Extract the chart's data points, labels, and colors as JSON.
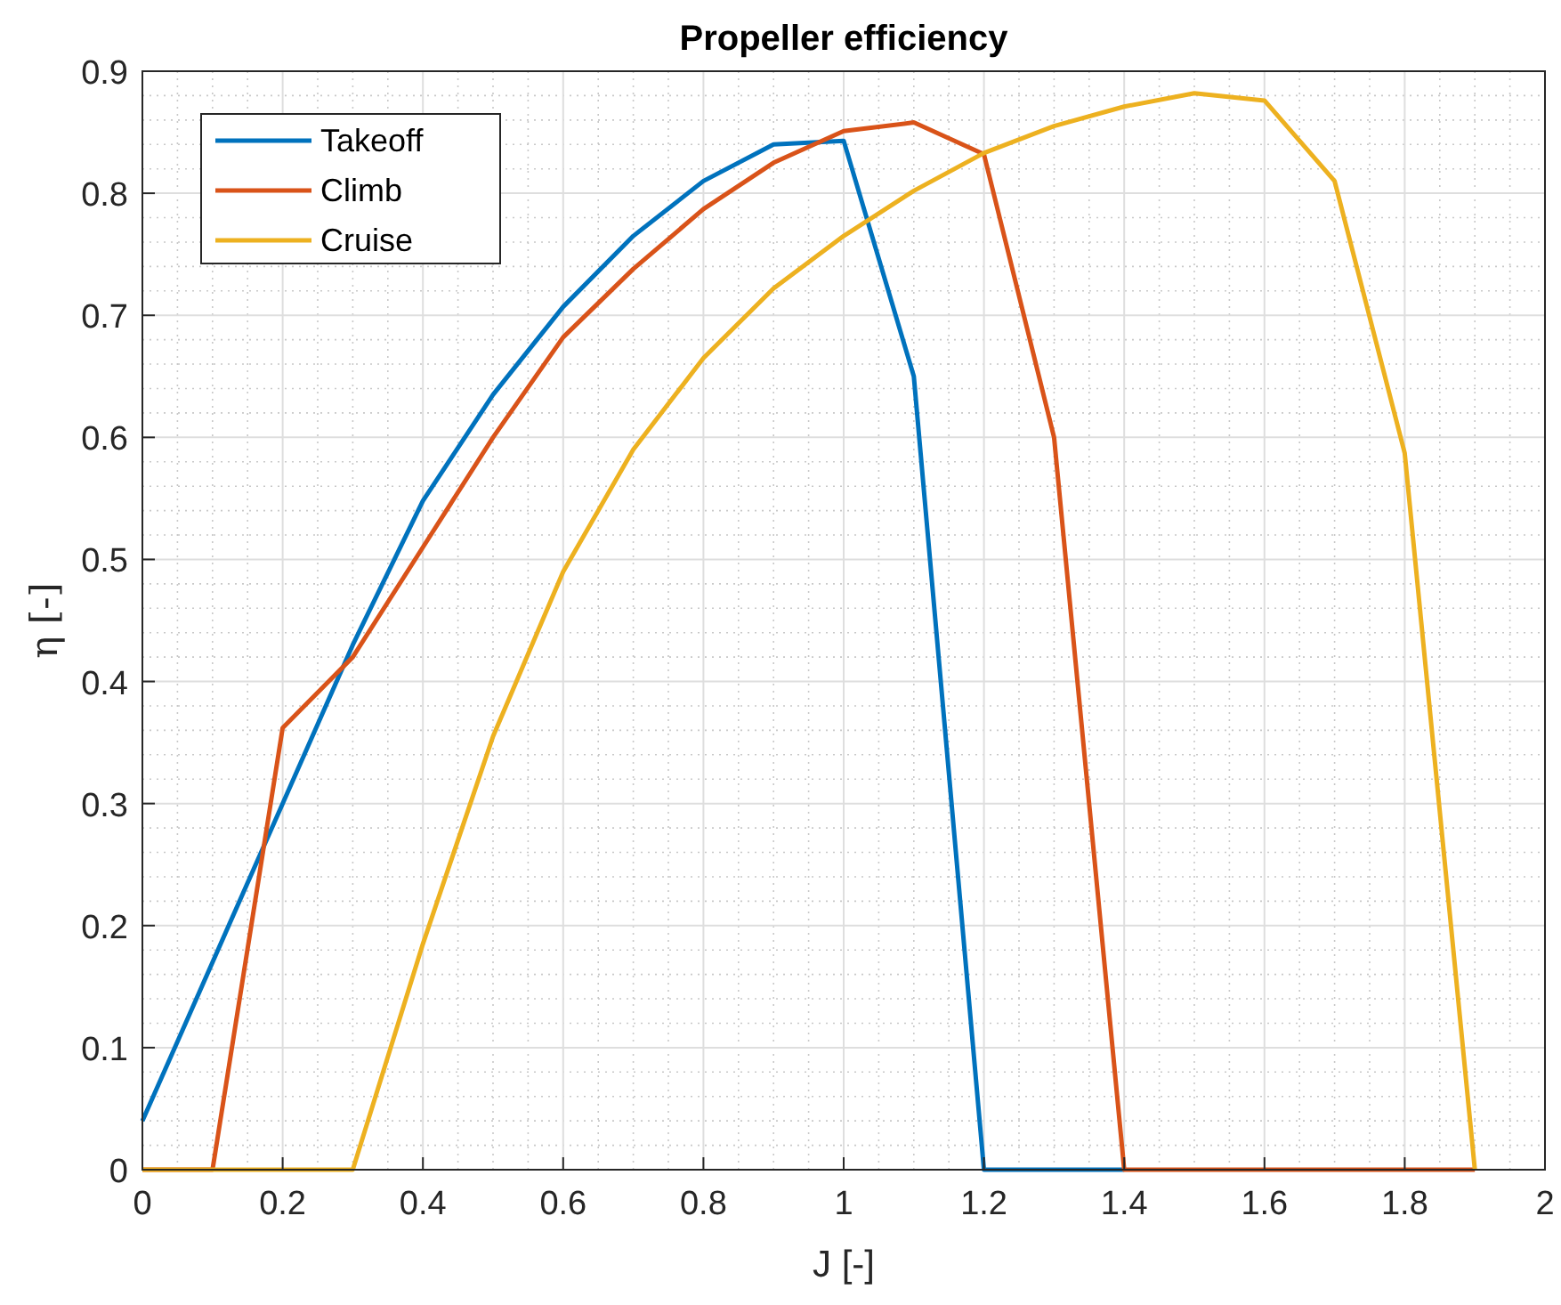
{
  "chart_data": {
    "type": "line",
    "title": "Propeller efficiency",
    "xlabel": "J [-]",
    "ylabel": "η [-]",
    "x": [
      0,
      0.1,
      0.2,
      0.3,
      0.4,
      0.5,
      0.6,
      0.7,
      0.8,
      0.9,
      1.0,
      1.1,
      1.2,
      1.3,
      1.4,
      1.5,
      1.6,
      1.7,
      1.8,
      1.9
    ],
    "series": [
      {
        "name": "Takeoff",
        "color": "#0072bd",
        "values": [
          0.04,
          0.17,
          0.3,
          0.43,
          0.548,
          0.635,
          0.707,
          0.765,
          0.81,
          0.84,
          0.843,
          0.65,
          0,
          0,
          0,
          null,
          null,
          null,
          null,
          null
        ]
      },
      {
        "name": "Climb",
        "color": "#d95319",
        "values": [
          0,
          0,
          0.362,
          0.42,
          0.51,
          0.6,
          0.682,
          0.738,
          0.787,
          0.825,
          0.851,
          0.858,
          0.832,
          0.6,
          0,
          0,
          0,
          0,
          0,
          0
        ]
      },
      {
        "name": "Cruise",
        "color": "#edb120",
        "values": [
          0,
          0,
          0,
          0,
          0.185,
          0.355,
          0.49,
          0.59,
          0.665,
          0.722,
          0.765,
          0.802,
          0.833,
          0.855,
          0.871,
          0.882,
          0.876,
          0.81,
          0.587,
          0
        ]
      }
    ],
    "xlim": [
      0,
      2
    ],
    "xticks": [
      0,
      0.2,
      0.4,
      0.6,
      0.8,
      1,
      1.2,
      1.4,
      1.6,
      1.8,
      2
    ],
    "ylim": [
      0,
      0.9
    ],
    "yticks": [
      0,
      0.1,
      0.2,
      0.3,
      0.4,
      0.5,
      0.6,
      0.7,
      0.8,
      0.9
    ],
    "grid": true,
    "legend": "top left",
    "marker": "none",
    "line_style": "solid"
  }
}
